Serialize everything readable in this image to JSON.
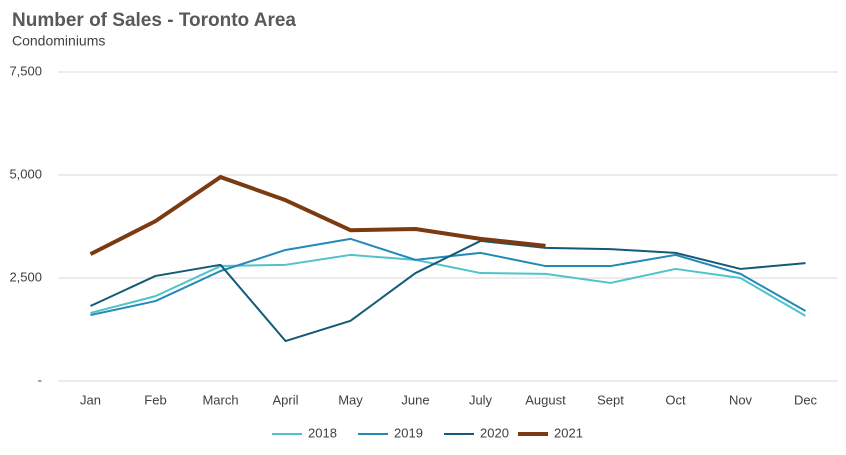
{
  "chart_data": {
    "type": "line",
    "title": "Number of Sales - Toronto Area",
    "subtitle": "Condominiums",
    "categories": [
      "Jan",
      "Feb",
      "March",
      "April",
      "May",
      "June",
      "July",
      "August",
      "Sept",
      "Oct",
      "Nov",
      "Dec"
    ],
    "series": [
      {
        "name": "2018",
        "color": "#4fc3c9",
        "width": 2,
        "values": [
          1650,
          2060,
          2790,
          2820,
          3060,
          2940,
          2620,
          2600,
          2380,
          2720,
          2500,
          1580
        ]
      },
      {
        "name": "2019",
        "color": "#2389b8",
        "width": 2,
        "values": [
          1600,
          1940,
          2670,
          3180,
          3450,
          2940,
          3110,
          2790,
          2790,
          3060,
          2600,
          1700
        ]
      },
      {
        "name": "2020",
        "color": "#135a78",
        "width": 2,
        "values": [
          1820,
          2550,
          2820,
          970,
          1460,
          2620,
          3400,
          3230,
          3200,
          3110,
          2720,
          2860
        ]
      },
      {
        "name": "2021",
        "color": "#7b3a10",
        "width": 4,
        "values": [
          3080,
          3880,
          4950,
          4390,
          3660,
          3690,
          3450,
          3280,
          null,
          null,
          null,
          null
        ]
      }
    ],
    "ylim": [
      0,
      7500
    ],
    "yticks": [
      {
        "value": 0,
        "label": "-"
      },
      {
        "value": 2500,
        "label": "2,500"
      },
      {
        "value": 5000,
        "label": "5,000"
      },
      {
        "value": 7500,
        "label": "7,500"
      }
    ],
    "grid": true,
    "legend": "bottom"
  }
}
